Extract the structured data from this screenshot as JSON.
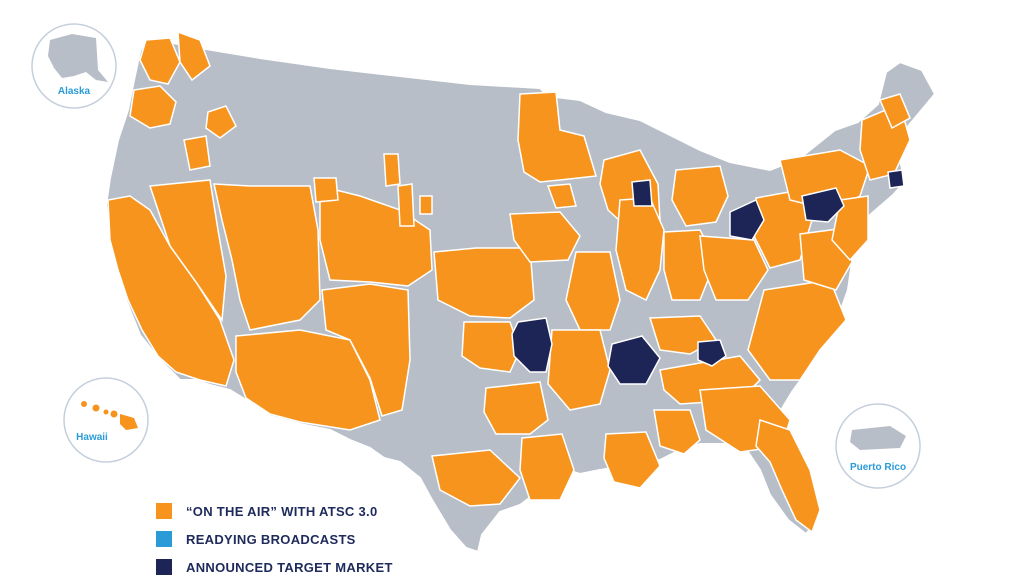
{
  "colors": {
    "background": "#ffffff",
    "land_default": "#b8bec7",
    "border": "#ffffff",
    "on_air": "#f7941d",
    "readying": "#2a9bd7",
    "target": "#1d2556",
    "inset_circle": "#c5cfdc",
    "inset_label": "#2a9bd7",
    "legend_text": "#1d2a5b"
  },
  "insets": {
    "alaska": "Alaska",
    "hawaii": "Hawaii",
    "puerto_rico": "Puerto Rico"
  },
  "legend": [
    {
      "label": "“ON THE AIR” WITH ATSC 3.0",
      "color": "#f7941d",
      "status": "on_air"
    },
    {
      "label": "READYING BROADCASTS",
      "color": "#2a9bd7",
      "status": "readying"
    },
    {
      "label": "ANNOUNCED TARGET MARKET",
      "color": "#1d2556",
      "status": "target"
    }
  ]
}
